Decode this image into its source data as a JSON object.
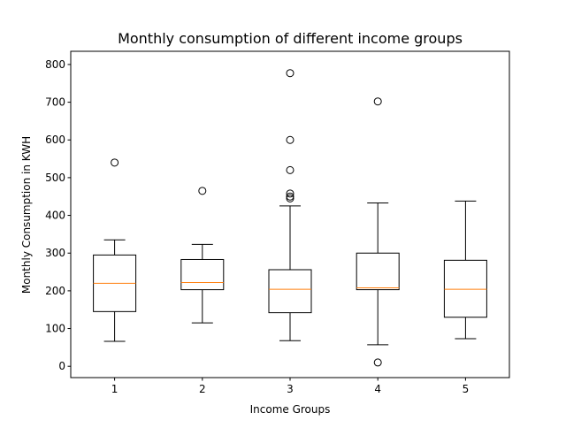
{
  "chart_data": {
    "type": "box",
    "title": "Monthly consumption of different income groups",
    "xlabel": "Income Groups",
    "ylabel": "Monthly Consumption in KWH",
    "categories": [
      "1",
      "2",
      "3",
      "4",
      "5"
    ],
    "ylim": [
      -30,
      835
    ],
    "yticks": [
      0,
      100,
      200,
      300,
      400,
      500,
      600,
      700,
      800
    ],
    "grid": false,
    "boxes": [
      {
        "category": "1",
        "whisker_low": 66,
        "q1": 145,
        "median": 220,
        "q3": 295,
        "whisker_high": 335,
        "outliers": [
          540
        ]
      },
      {
        "category": "2",
        "whisker_low": 115,
        "q1": 203,
        "median": 222,
        "q3": 283,
        "whisker_high": 323,
        "outliers": [
          465
        ]
      },
      {
        "category": "3",
        "whisker_low": 68,
        "q1": 142,
        "median": 204,
        "q3": 256,
        "whisker_high": 425,
        "outliers": [
          445,
          450,
          458,
          520,
          600,
          777
        ]
      },
      {
        "category": "4",
        "whisker_low": 57,
        "q1": 203,
        "median": 208,
        "q3": 300,
        "whisker_high": 433,
        "outliers": [
          10,
          702
        ]
      },
      {
        "category": "5",
        "whisker_low": 73,
        "q1": 130,
        "median": 204,
        "q3": 281,
        "whisker_high": 438,
        "outliers": []
      }
    ],
    "colors": {
      "box": "#000000",
      "median": "#ff7f0e",
      "outlier": "#000000"
    }
  }
}
